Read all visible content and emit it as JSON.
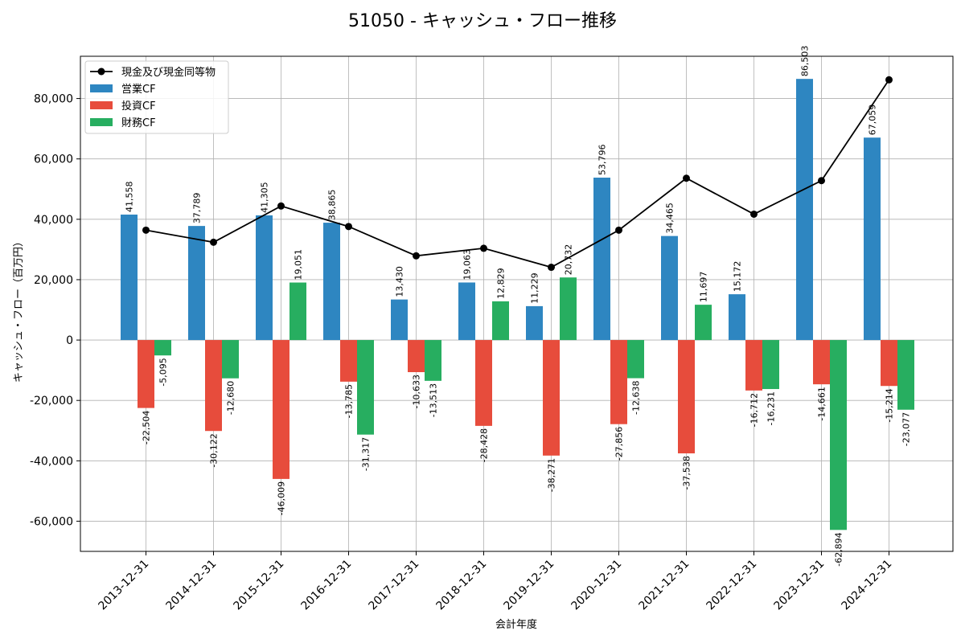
{
  "chart_data": {
    "type": "bar",
    "title": "51050 - キャッシュ・フロー推移",
    "xlabel": "会計年度",
    "ylabel": "キャッシュ・フロー（百万円）",
    "ylim": [
      -70000,
      94000
    ],
    "yticks": [
      -60000,
      -40000,
      -20000,
      0,
      20000,
      40000,
      60000,
      80000
    ],
    "ytick_labels": [
      "-60,000",
      "-40,000",
      "-20,000",
      "0",
      "20,000",
      "40,000",
      "60,000",
      "80,000"
    ],
    "grid": true,
    "legend_position": "top-left",
    "categories": [
      "2013-12-31",
      "2014-12-31",
      "2015-12-31",
      "2016-12-31",
      "2017-12-31",
      "2018-12-31",
      "2019-12-31",
      "2020-12-31",
      "2021-12-31",
      "2022-12-31",
      "2023-12-31",
      "2024-12-31"
    ],
    "series": [
      {
        "name": "営業CF",
        "kind": "bar",
        "color": "#2e86c1",
        "values": [
          41558,
          37789,
          41305,
          38865,
          13430,
          19063,
          11229,
          53796,
          34465,
          15172,
          86503,
          67059
        ],
        "labels": [
          "41,558",
          "37,789",
          "41,305",
          "38,865",
          "13,430",
          "19,063",
          "11,229",
          "53,796",
          "34,465",
          "15,172",
          "86,503",
          "67,059"
        ]
      },
      {
        "name": "投資CF",
        "kind": "bar",
        "color": "#e74c3c",
        "values": [
          -22504,
          -30122,
          -46009,
          -13785,
          -10633,
          -28428,
          -38271,
          -27856,
          -37538,
          -16712,
          -14661,
          -15214
        ],
        "labels": [
          "-22,504",
          "-30,122",
          "-46,009",
          "-13,785",
          "-10,633",
          "-28,428",
          "-38,271",
          "-27,856",
          "-37,538",
          "-16,712",
          "-14,661",
          "-15,214"
        ]
      },
      {
        "name": "財務CF",
        "kind": "bar",
        "color": "#27ae60",
        "values": [
          -5095,
          -12680,
          19051,
          -31317,
          -13513,
          12829,
          20732,
          -12638,
          11697,
          -16231,
          -62894,
          -23077
        ],
        "labels": [
          "-5,095",
          "-12,680",
          "19,051",
          "-31,317",
          "-13,513",
          "12,829",
          "20,732",
          "-12,638",
          "11,697",
          "-16,231",
          "-62,894",
          "-23,077"
        ]
      },
      {
        "name": "現金及び現金同等物",
        "kind": "line",
        "color": "#000000",
        "values": [
          36400,
          32400,
          44400,
          37600,
          27900,
          30400,
          24100,
          36400,
          53600,
          41700,
          52800,
          86200
        ]
      }
    ]
  }
}
